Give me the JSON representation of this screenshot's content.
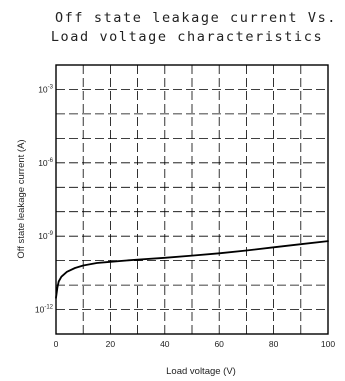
{
  "chart_data": {
    "type": "line",
    "title": [
      "Off state leakage current Vs.",
      "Load voltage characteristics"
    ],
    "xlabel": "Load voltage (V)",
    "ylabel": "Off state leakage current (A)",
    "xlim": [
      0,
      100
    ],
    "ylim_log10": [
      -13,
      -2
    ],
    "yscale": "log",
    "x_ticks": [
      {
        "value": 0,
        "label": "0"
      },
      {
        "value": 20,
        "label": "20"
      },
      {
        "value": 40,
        "label": "40"
      },
      {
        "value": 60,
        "label": "60"
      },
      {
        "value": 80,
        "label": "80"
      },
      {
        "value": 100,
        "label": "100"
      }
    ],
    "y_ticks": [
      {
        "value": "1e-3",
        "base": "10",
        "exp": "-3"
      },
      {
        "value": "1e-6",
        "base": "10",
        "exp": "-6"
      },
      {
        "value": "1e-9",
        "base": "10",
        "exp": "-9"
      },
      {
        "value": "1e-12",
        "base": "10",
        "exp": "-12"
      }
    ],
    "grid": true,
    "series": [
      {
        "x": [
          0,
          0.5,
          1,
          2,
          4,
          7,
          10,
          15,
          20,
          30,
          40,
          50,
          60,
          70,
          80,
          90,
          100
        ],
        "y": [
          "3e-12",
          "8e-12",
          "1.4e-11",
          "2.2e-11",
          "3.5e-11",
          "5e-11",
          "6.3e-11",
          "8e-11",
          "9e-11",
          "1.1e-10",
          "1.3e-10",
          "1.6e-10",
          "2e-10",
          "2.6e-10",
          "3.5e-10",
          "4.7e-10",
          "6.3e-10"
        ]
      }
    ]
  }
}
